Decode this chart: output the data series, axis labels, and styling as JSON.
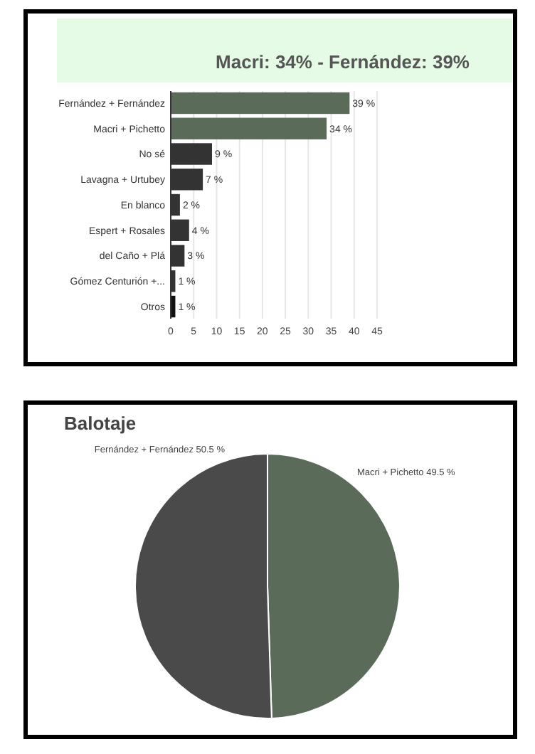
{
  "chart_data": [
    {
      "type": "bar",
      "orientation": "horizontal",
      "title": "Macri: 34% - Fernández: 39%",
      "categories": [
        "Fernández + Fernández",
        "Macri + Pichetto",
        "No sé",
        "Lavagna + Urtubey",
        "En blanco",
        "Espert + Rosales",
        "del Caño + Plá",
        "Gómez Centurión +...",
        "Otros"
      ],
      "values": [
        39,
        34,
        9,
        7,
        2,
        4,
        3,
        1,
        1
      ],
      "value_labels": [
        "39 %",
        "34 %",
        "9 %",
        "7 %",
        "2 %",
        "4 %",
        "3 %",
        "1 %",
        "1 %"
      ],
      "colors": [
        "#5a6b5a",
        "#5a6b5a",
        "#333333",
        "#333333",
        "#333333",
        "#333333",
        "#333333",
        "#333333",
        "#111111"
      ],
      "xlim": [
        0,
        45
      ],
      "xticks": [
        0,
        5,
        10,
        15,
        20,
        25,
        30,
        35,
        40,
        45
      ],
      "grid": "x"
    },
    {
      "type": "pie",
      "title": "Balotaje",
      "categories": [
        "Macri + Pichetto",
        "Fernández + Fernández"
      ],
      "values": [
        49.5,
        50.5
      ],
      "value_labels": [
        "49.5 %",
        "50.5 %"
      ],
      "colors": [
        "#5a6b5a",
        "#4a4a4a"
      ]
    }
  ]
}
